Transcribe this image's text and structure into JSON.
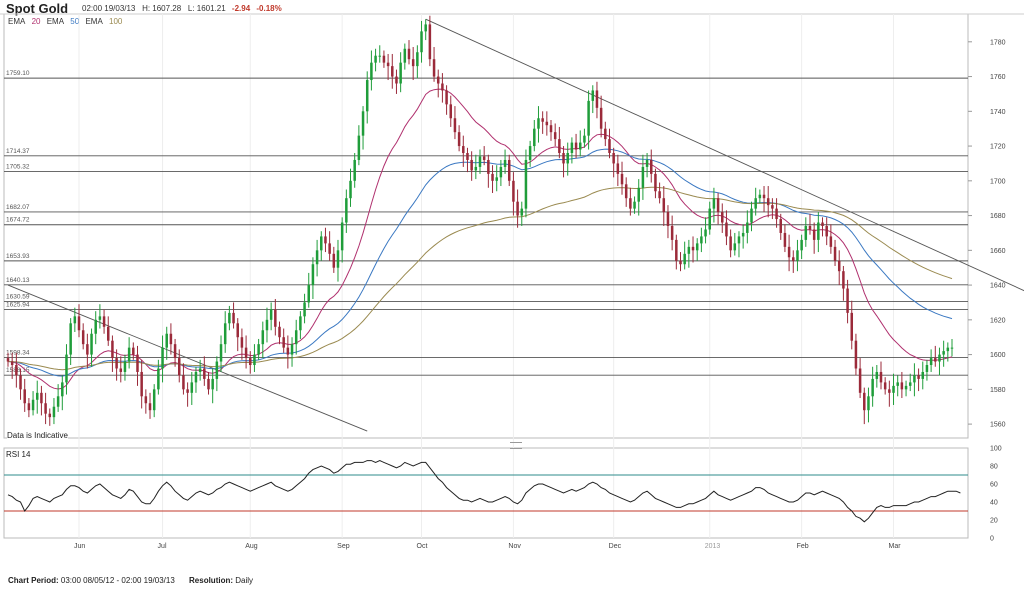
{
  "header": {
    "title": "Spot Gold",
    "datetime": "02:00 19/03/13",
    "high": "H: 1607.28",
    "low": "L: 1601.21",
    "change": "-2.94",
    "change_pct": "-0.18%",
    "ema": [
      {
        "label": "EMA",
        "period": "20",
        "color": "#b0306e"
      },
      {
        "label": "EMA",
        "period": "50",
        "color": "#3a78c2"
      },
      {
        "label": "EMA",
        "period": "100",
        "color": "#9a8a50"
      }
    ]
  },
  "price_panel": {
    "indicative_note": "Data is Indicative",
    "y_ticks": [
      1560,
      1580,
      1600,
      1620,
      1640,
      1660,
      1680,
      1700,
      1720,
      1740,
      1760,
      1780
    ],
    "h_levels": [
      "1759.10",
      "1714.37",
      "1705.32",
      "1682.07",
      "1674.72",
      "1653.93",
      "1640.13",
      "1630.59",
      "1625.94",
      "1598.34",
      "1588.15"
    ]
  },
  "rsi_panel": {
    "label": "RSI 14",
    "y_ticks": [
      0,
      20,
      40,
      60,
      80,
      100
    ],
    "overbought": 70,
    "oversold": 30
  },
  "x_axis": {
    "labels": [
      "Jun",
      "Jul",
      "Aug",
      "Sep",
      "Oct",
      "Nov",
      "Dec",
      "2013",
      "Feb",
      "Mar"
    ]
  },
  "footer": {
    "period_label": "Chart Period:",
    "period_value": "03:00 08/05/12 - 02:00 19/03/13",
    "resolution_label": "Resolution:",
    "resolution_value": "Daily"
  },
  "chart_data": {
    "type": "candlestick",
    "title": "Spot Gold",
    "ylim": [
      1552,
      1796
    ],
    "rsi_ylim": [
      0,
      100
    ],
    "colors": {
      "up": "#1f9d3a",
      "down": "#9b2a3a",
      "ema20": "#b0306e",
      "ema50": "#3a78c2",
      "ema100": "#9a8a50",
      "rsi": "#222222",
      "rsi_70": "#2e8b8b",
      "rsi_30": "#c0392b",
      "level": "#555555",
      "trend": "#555555"
    },
    "month_ticks": [
      "Jun",
      "Jul",
      "Aug",
      "Sep",
      "Oct",
      "Nov",
      "Dec",
      "2013",
      "Feb",
      "Mar"
    ],
    "month_index": [
      17,
      37,
      58,
      80,
      99,
      121,
      145,
      168,
      190,
      212
    ],
    "levels": [
      1759.1,
      1714.37,
      1705.32,
      1682.07,
      1674.72,
      1653.93,
      1640.13,
      1630.59,
      1625.94,
      1598.34,
      1588.15
    ],
    "trendlines": [
      {
        "from": [
          0,
          1640
        ],
        "to": [
          86,
          1556
        ]
      },
      {
        "from": [
          100,
          1793
        ],
        "to": [
          244,
          1636
        ]
      }
    ],
    "close": [
      1596,
      1594,
      1588,
      1580,
      1572,
      1568,
      1574,
      1578,
      1572,
      1566,
      1564,
      1570,
      1576,
      1584,
      1600,
      1618,
      1622,
      1614,
      1606,
      1600,
      1612,
      1620,
      1622,
      1616,
      1608,
      1598,
      1592,
      1590,
      1596,
      1604,
      1600,
      1590,
      1576,
      1572,
      1568,
      1580,
      1592,
      1604,
      1612,
      1606,
      1598,
      1588,
      1580,
      1578,
      1584,
      1590,
      1592,
      1586,
      1580,
      1586,
      1596,
      1606,
      1618,
      1624,
      1618,
      1610,
      1604,
      1598,
      1594,
      1600,
      1606,
      1614,
      1620,
      1626,
      1616,
      1610,
      1604,
      1600,
      1606,
      1614,
      1622,
      1630,
      1640,
      1652,
      1660,
      1668,
      1664,
      1658,
      1650,
      1660,
      1676,
      1690,
      1700,
      1712,
      1726,
      1740,
      1758,
      1768,
      1772,
      1772,
      1768,
      1766,
      1760,
      1756,
      1768,
      1776,
      1770,
      1766,
      1774,
      1786,
      1790,
      1770,
      1760,
      1756,
      1752,
      1744,
      1736,
      1728,
      1720,
      1716,
      1712,
      1706,
      1708,
      1714,
      1712,
      1704,
      1700,
      1702,
      1708,
      1712,
      1700,
      1688,
      1680,
      1684,
      1712,
      1720,
      1730,
      1736,
      1734,
      1732,
      1728,
      1724,
      1716,
      1710,
      1716,
      1722,
      1718,
      1722,
      1726,
      1746,
      1752,
      1742,
      1730,
      1724,
      1716,
      1710,
      1704,
      1698,
      1690,
      1684,
      1688,
      1696,
      1708,
      1712,
      1704,
      1694,
      1690,
      1682,
      1674,
      1666,
      1654,
      1652,
      1658,
      1662,
      1660,
      1664,
      1668,
      1672,
      1684,
      1690,
      1682,
      1676,
      1668,
      1660,
      1664,
      1668,
      1670,
      1676,
      1684,
      1690,
      1692,
      1690,
      1686,
      1684,
      1678,
      1670,
      1662,
      1656,
      1654,
      1660,
      1666,
      1674,
      1672,
      1666,
      1676,
      1674,
      1668,
      1662,
      1654,
      1648,
      1638,
      1624,
      1608,
      1592,
      1578,
      1568,
      1576,
      1586,
      1590,
      1584,
      1580,
      1578,
      1582,
      1584,
      1580,
      1582,
      1584,
      1588,
      1586,
      1590,
      1594,
      1598,
      1596,
      1600,
      1602,
      1604,
      1604
    ],
    "rsi": [
      48,
      46,
      42,
      40,
      30,
      36,
      44,
      46,
      44,
      42,
      40,
      44,
      46,
      48,
      54,
      58,
      58,
      56,
      52,
      50,
      54,
      58,
      60,
      56,
      52,
      48,
      46,
      44,
      48,
      54,
      52,
      46,
      40,
      38,
      38,
      44,
      52,
      58,
      62,
      58,
      52,
      48,
      44,
      42,
      46,
      50,
      52,
      50,
      48,
      50,
      54,
      56,
      60,
      62,
      60,
      58,
      56,
      54,
      52,
      54,
      56,
      58,
      60,
      62,
      58,
      56,
      54,
      52,
      54,
      58,
      62,
      66,
      72,
      76,
      78,
      80,
      78,
      76,
      72,
      74,
      78,
      82,
      82,
      84,
      84,
      84,
      86,
      86,
      84,
      86,
      84,
      82,
      80,
      78,
      80,
      84,
      82,
      80,
      82,
      84,
      84,
      78,
      72,
      66,
      62,
      56,
      52,
      48,
      44,
      42,
      42,
      40,
      42,
      44,
      42,
      40,
      40,
      42,
      44,
      46,
      44,
      40,
      38,
      42,
      50,
      54,
      58,
      60,
      60,
      58,
      56,
      54,
      52,
      50,
      52,
      54,
      52,
      54,
      56,
      60,
      62,
      60,
      56,
      54,
      50,
      48,
      46,
      44,
      42,
      40,
      42,
      46,
      50,
      52,
      48,
      44,
      42,
      40,
      38,
      36,
      34,
      34,
      36,
      38,
      38,
      40,
      42,
      44,
      48,
      52,
      48,
      46,
      44,
      42,
      44,
      46,
      48,
      50,
      52,
      56,
      56,
      54,
      50,
      48,
      46,
      44,
      42,
      40,
      40,
      42,
      46,
      50,
      50,
      48,
      50,
      52,
      50,
      48,
      46,
      44,
      40,
      34,
      30,
      24,
      22,
      18,
      22,
      28,
      34,
      36,
      34,
      34,
      36,
      36,
      36,
      36,
      38,
      40,
      40,
      42,
      44,
      46,
      46,
      48,
      50,
      52,
      52,
      52,
      50
    ]
  }
}
